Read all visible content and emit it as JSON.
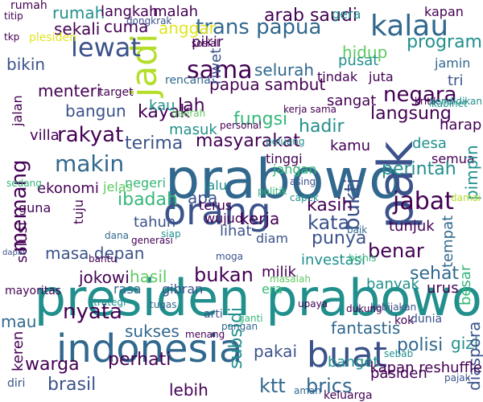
{
  "palette": {
    "background": "#ffffff",
    "dark_purple": "#440154",
    "indigo": "#3b528b",
    "blue": "#31688e",
    "teal": "#21908d",
    "green": "#35b779",
    "light_green": "#5ec962",
    "yellow_green": "#b5de2b",
    "yellow": "#e0e61f"
  },
  "words": [
    "presiden prabowo",
    "prabowo",
    "buat",
    "indonesia",
    "pak",
    "orang",
    "kalau",
    "jadi",
    "lewat",
    "sama",
    "trans papua",
    "arab saudi",
    "rakyat",
    "makin",
    "memang",
    "jabat",
    "bukti",
    "benar",
    "program",
    "masyarakat",
    "hadir",
    "terima",
    "rumah",
    "kerja",
    "ibadah",
    "apa",
    "arti",
    "tahun",
    "masa depan",
    "jokowi",
    "hasil",
    "nyata",
    "sukses",
    "warga",
    "perhati",
    "brasil",
    "lebih",
    "ktt",
    "brics",
    "gizi",
    "polisi",
    "sehat",
    "pakai",
    "subsidi",
    "fantastis",
    "kata",
    "tunjuk",
    "kasih",
    "lihat",
    "diam",
    "bukan",
    "milik",
    "investasi",
    "punya",
    "banyak",
    "urus",
    "desa",
    "harap",
    "semua",
    "perintah",
    "pimpin",
    "tempat",
    "besar",
    "diaspora",
    "kamu",
    "langsung",
    "negara",
    "sangat",
    "fungsi",
    "papua sambut",
    "selurah",
    "menteri",
    "bangun",
    "villa",
    "kayak",
    "lah",
    "masuk",
    "kau",
    "cuma",
    "sekali",
    "bikin",
    "anggar",
    "pikir",
    "riwet",
    "langkah",
    "malah",
    "dongkrak",
    "gera",
    "kapan",
    "hidup",
    "pusat",
    "jamin",
    "tri",
    "juta",
    "tindak",
    "rumah",
    "jalan",
    "ekonomi",
    "jelas",
    "negeri",
    "jangan",
    "lalu",
    "terus",
    "wujud",
    "tinggi",
    "generasi",
    "era",
    "rasa",
    "gibran",
    "mau",
    "diri",
    "keren",
    "banget",
    "kapan reshuffle",
    "pasiden",
    "keluarga",
    "sebab",
    "pajak",
    "masalah",
    "kok",
    "guna",
    "tuju",
    "solusi",
    "personal",
    "sosial",
    "kritik",
    "ganti",
    "baik",
    "dunia",
    "aman",
    "politik",
    "kebijakan",
    "pangan",
    "menang",
    "daerah",
    "dana",
    "target",
    "kabinet",
    "rencana",
    "capek",
    "titip",
    "tkp",
    "plesiden",
    "mayoritas",
    "dapat",
    "bantu",
    "sedang",
    "siap",
    "strategi",
    "moga",
    "damai",
    "pendidikan",
    "kerja sama",
    "peluang",
    "asing",
    "bisnis",
    "upaya",
    "dukung",
    "tugas"
  ]
}
